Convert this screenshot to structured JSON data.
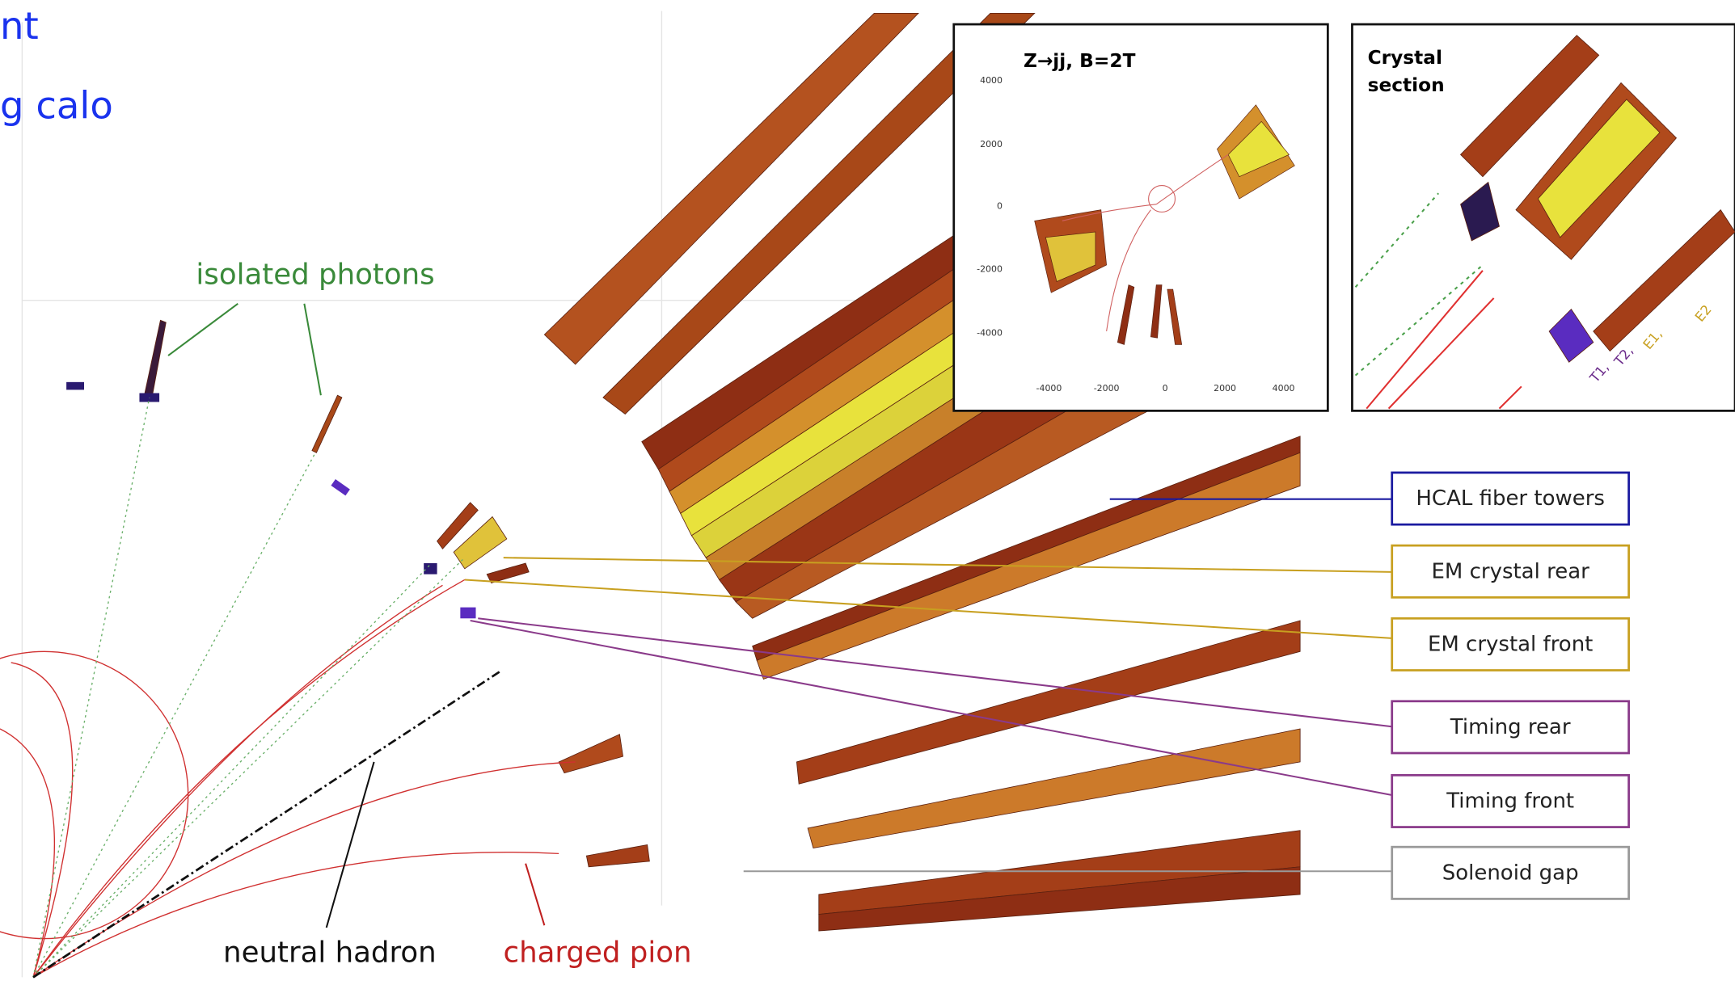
{
  "header": {
    "lines": [
      "nt",
      "g calo"
    ]
  },
  "annotations": {
    "photons": "isolated photons",
    "neutral": "neutral hadron",
    "pion": "charged pion"
  },
  "labels": [
    "HCAL fiber towers",
    "EM crystal rear",
    "EM crystal front",
    "Timing rear",
    "Timing front",
    "Solenoid gap"
  ],
  "inset_event": {
    "title": "Z→jj, B=2T",
    "yticks": [
      4000,
      2000,
      0,
      -2000,
      -4000
    ],
    "xticks": [
      -4000,
      -2000,
      0,
      2000,
      4000
    ]
  },
  "inset_crystal": {
    "title": [
      "Crystal",
      "section"
    ],
    "layers": [
      "T1,",
      "T2,",
      "E1,",
      "E2"
    ]
  }
}
